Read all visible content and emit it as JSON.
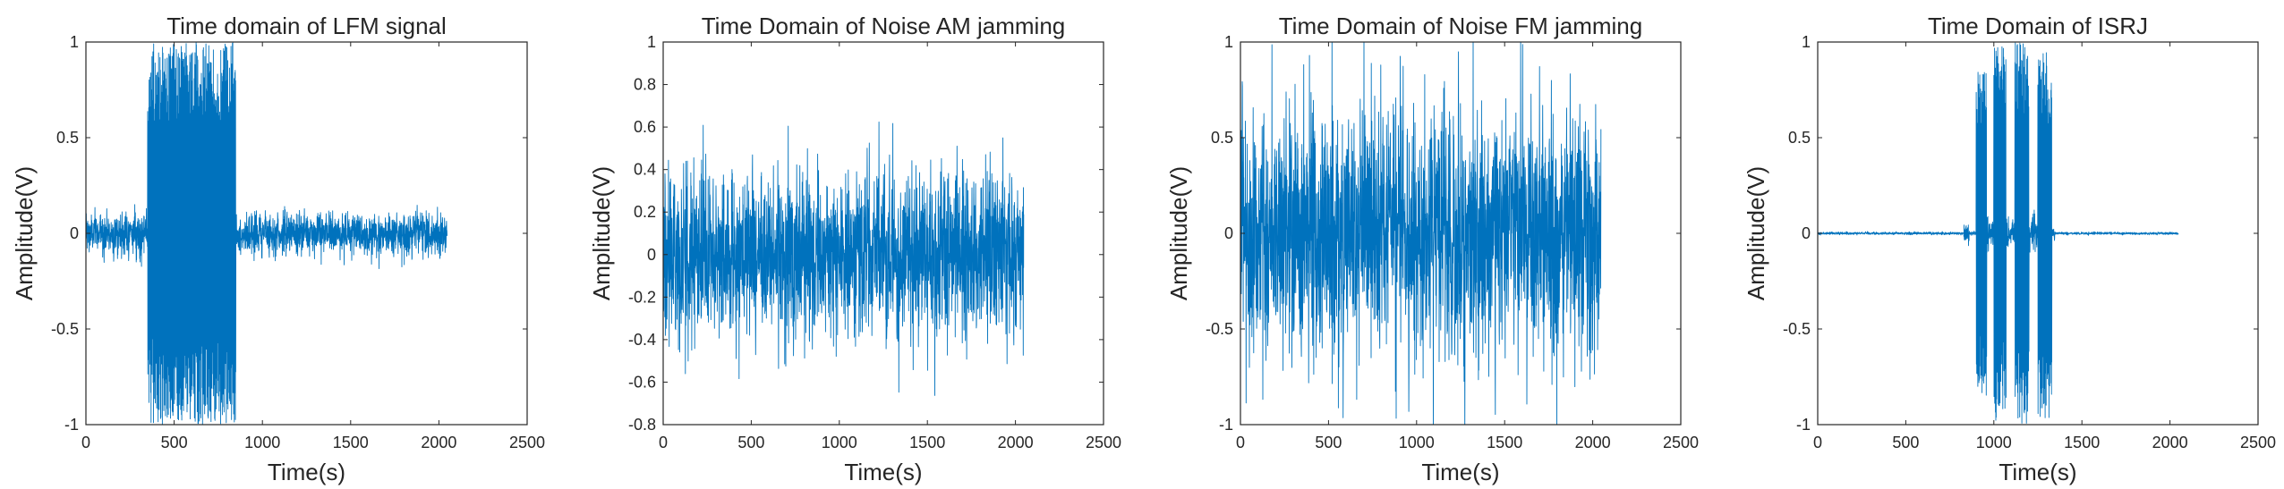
{
  "chart_data": [
    {
      "type": "line",
      "title": "Time domain of LFM signal",
      "xlabel": "Time(s)",
      "ylabel": "Amplitude(V)",
      "xlim": [
        0,
        2500
      ],
      "ylim": [
        -1,
        1
      ],
      "xticks": [
        0,
        500,
        1000,
        1500,
        2000,
        2500
      ],
      "yticks": [
        -1,
        -0.5,
        0,
        0.5,
        1
      ],
      "ytick_labels": [
        "-1",
        "-0.5",
        "0",
        "0.5",
        "1"
      ],
      "color": "#0072BD",
      "grid": false,
      "legend": "none",
      "segments": [
        {
          "x_start": 0,
          "x_end": 350,
          "kind": "noise",
          "amplitude": 0.1
        },
        {
          "x_start": 350,
          "x_end": 850,
          "kind": "chirp",
          "amplitude": 1.0
        },
        {
          "x_start": 850,
          "x_end": 2048,
          "kind": "noise",
          "amplitude": 0.1
        }
      ]
    },
    {
      "type": "line",
      "title": "Time Domain of Noise AM jamming",
      "xlabel": "Time(s)",
      "ylabel": "Amplitude(V)",
      "xlim": [
        0,
        2500
      ],
      "ylim": [
        -0.8,
        1
      ],
      "xticks": [
        0,
        500,
        1000,
        1500,
        2000,
        2500
      ],
      "yticks": [
        -0.8,
        -0.6,
        -0.4,
        -0.2,
        0,
        0.2,
        0.4,
        0.6,
        0.8,
        1
      ],
      "ytick_labels": [
        "-0.8",
        "-0.6",
        "-0.4",
        "-0.2",
        "0",
        "0.2",
        "0.4",
        "0.6",
        "0.8",
        "1"
      ],
      "color": "#0072BD",
      "grid": false,
      "legend": "none",
      "segments": [
        {
          "x_start": 0,
          "x_end": 2048,
          "kind": "noise",
          "amplitude": 0.35
        }
      ]
    },
    {
      "type": "line",
      "title": "Time Domain of Noise FM jamming",
      "xlabel": "Time(s)",
      "ylabel": "Amplitude(V)",
      "xlim": [
        0,
        2500
      ],
      "ylim": [
        -1,
        1
      ],
      "xticks": [
        0,
        500,
        1000,
        1500,
        2000,
        2500
      ],
      "yticks": [
        -1,
        -0.5,
        0,
        0.5,
        1
      ],
      "ytick_labels": [
        "-1",
        "-0.5",
        "0",
        "0.5",
        "1"
      ],
      "color": "#0072BD",
      "grid": false,
      "legend": "none",
      "segments": [
        {
          "x_start": 0,
          "x_end": 2048,
          "kind": "noise",
          "amplitude": 0.6
        }
      ]
    },
    {
      "type": "line",
      "title": "Time Domain of ISRJ",
      "xlabel": "Time(s)",
      "ylabel": "Amplitude(V)",
      "xlim": [
        0,
        2500
      ],
      "ylim": [
        -1,
        1
      ],
      "xticks": [
        0,
        500,
        1000,
        1500,
        2000,
        2500
      ],
      "yticks": [
        -1,
        -0.5,
        0,
        0.5,
        1
      ],
      "ytick_labels": [
        "-1",
        "-0.5",
        "0",
        "0.5",
        "1"
      ],
      "color": "#0072BD",
      "grid": false,
      "legend": "none",
      "segments": [
        {
          "x_start": 0,
          "x_end": 830,
          "kind": "noise",
          "amplitude": 0.006
        },
        {
          "x_start": 830,
          "x_end": 860,
          "kind": "noise",
          "amplitude": 0.05
        },
        {
          "x_start": 860,
          "x_end": 900,
          "kind": "noise",
          "amplitude": 0.01
        },
        {
          "x_start": 900,
          "x_end": 960,
          "kind": "chirp",
          "amplitude": 0.85
        },
        {
          "x_start": 960,
          "x_end": 1000,
          "kind": "noise",
          "amplitude": 0.08
        },
        {
          "x_start": 1000,
          "x_end": 1070,
          "kind": "chirp",
          "amplitude": 0.98
        },
        {
          "x_start": 1070,
          "x_end": 1120,
          "kind": "noise",
          "amplitude": 0.08
        },
        {
          "x_start": 1120,
          "x_end": 1200,
          "kind": "chirp",
          "amplitude": 1.0
        },
        {
          "x_start": 1200,
          "x_end": 1250,
          "kind": "noise",
          "amplitude": 0.08
        },
        {
          "x_start": 1250,
          "x_end": 1330,
          "kind": "chirp",
          "amplitude": 1.0
        },
        {
          "x_start": 1330,
          "x_end": 1350,
          "kind": "noise",
          "amplitude": 0.03
        },
        {
          "x_start": 1350,
          "x_end": 2048,
          "kind": "noise",
          "amplitude": 0.006
        }
      ]
    }
  ]
}
